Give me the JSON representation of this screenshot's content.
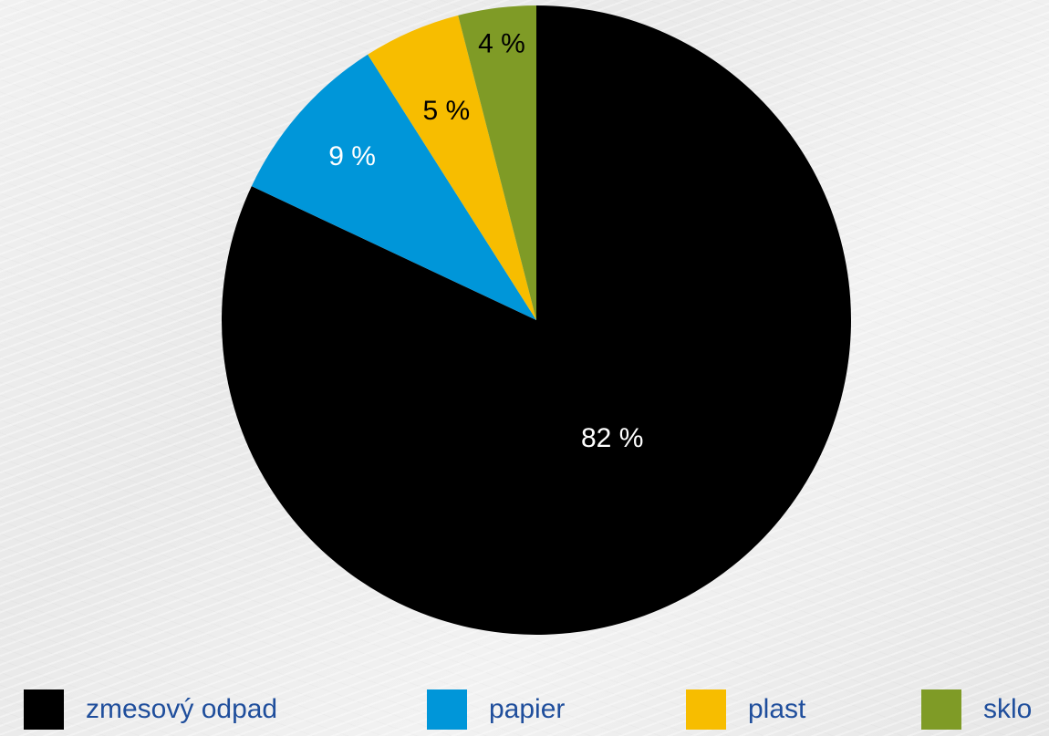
{
  "chart_data": {
    "type": "pie",
    "title": "",
    "slices": [
      {
        "label": "zmesový odpad",
        "value": 82,
        "value_label": "82 %",
        "color": "#000000",
        "label_color": "#ffffff"
      },
      {
        "label": "papier",
        "value": 9,
        "value_label": "9 %",
        "color": "#0096d9",
        "label_color": "#ffffff"
      },
      {
        "label": "plast",
        "value": 5,
        "value_label": "5 %",
        "color": "#f7bd00",
        "label_color": "#000000"
      },
      {
        "label": "sklo",
        "value": 4,
        "value_label": "4 %",
        "color": "#7f9b26",
        "label_color": "#000000"
      }
    ],
    "start_angle": "12 o'clock",
    "direction": "clockwise",
    "legend_position": "bottom"
  }
}
